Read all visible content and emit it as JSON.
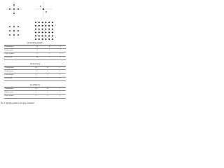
{
  "sections": [
    {
      "caption": "(a) sampling pattern",
      "header": [
        "Configuration",
        "A",
        "B",
        "C"
      ],
      "rows": [
        [
          "Uniform grid",
          "4",
          "1",
          "1"
        ],
        [
          "Cross stencil",
          "4",
          "1",
          "2"
        ],
        [
          "Dense grid",
          "36",
          "2",
          "3"
        ]
      ]
    },
    {
      "caption": "(b) accuracy",
      "header": [
        "Configuration",
        "A",
        "B",
        "C"
      ],
      "rows": [
        [
          "Uniform grid",
          "1",
          "2",
          "1"
        ],
        [
          "Cross stencil",
          "2",
          "2",
          "1"
        ],
        [
          "Dense grid",
          "3",
          "1",
          "2"
        ]
      ]
    },
    {
      "caption": "(c) efficiency",
      "header": [
        "Configuration",
        "A",
        "B",
        "C"
      ],
      "rows": [
        [
          "Uniform grid",
          "1",
          "1",
          "1"
        ],
        [
          "Cross stencil",
          "2",
          "1",
          "1"
        ]
      ]
    }
  ],
  "footer": "Fig. 3. Sampling patterns and their evaluation."
}
